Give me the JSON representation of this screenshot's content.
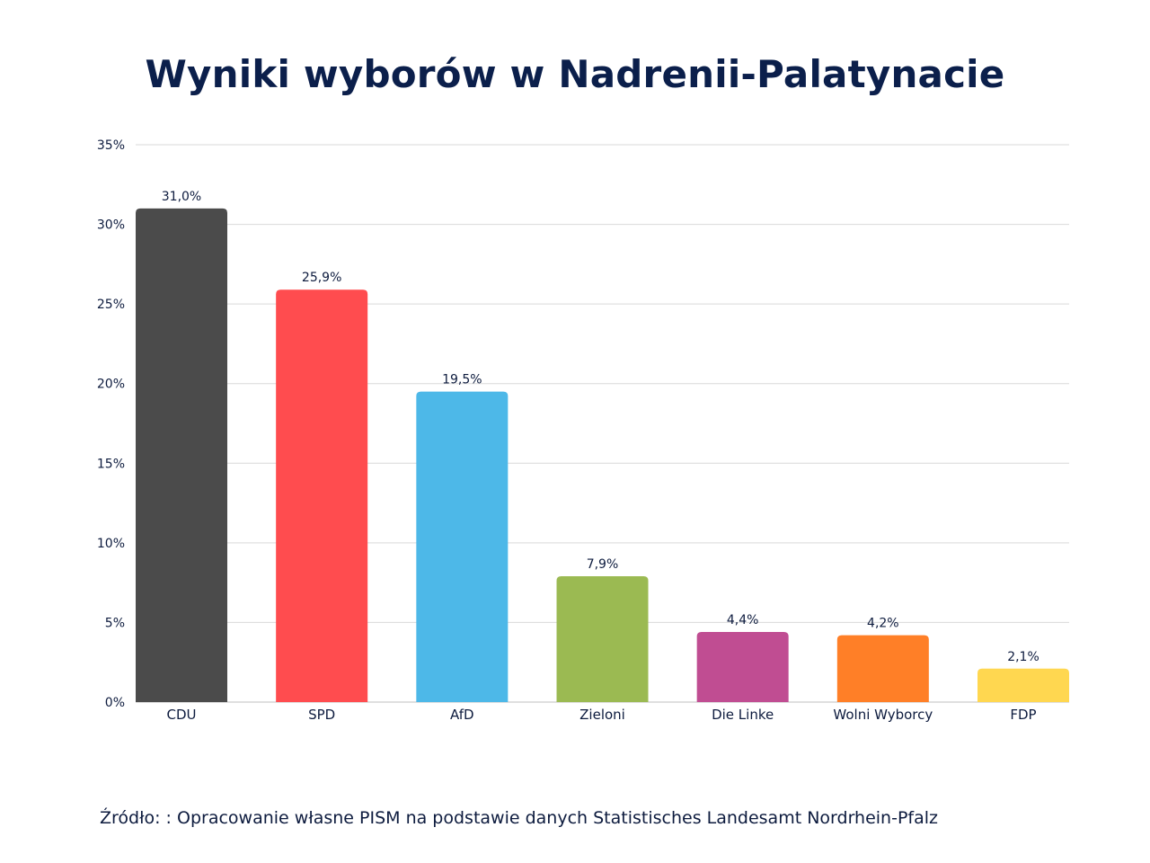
{
  "title": "Wyniki wyborów w Nadrenii-Palatynacie",
  "source": "Źródło: : Opracowanie własne PISM na podstawie danych Statistisches Landesamt Nordrhein-Pfalz",
  "chart_data": {
    "type": "bar",
    "title": "Wyniki wyborów w Nadrenii-Palatynacie",
    "xlabel": "",
    "ylabel": "",
    "categories": [
      "CDU",
      "SPD",
      "AfD",
      "Zieloni",
      "Die Linke",
      "Wolni Wyborcy",
      "FDP"
    ],
    "values": [
      31.0,
      25.9,
      19.5,
      7.9,
      4.4,
      4.2,
      2.1
    ],
    "value_labels": [
      "31,0%",
      "25,9%",
      "19,5%",
      "7,9%",
      "4,4%",
      "4,2%",
      "2,1%"
    ],
    "colors": [
      "#4b4b4b",
      "#ff4c4f",
      "#4db8e8",
      "#9bba52",
      "#c04d92",
      "#ff7f27",
      "#ffd750"
    ],
    "ylim": [
      0,
      35
    ],
    "yticks": [
      0,
      5,
      10,
      15,
      20,
      25,
      30,
      35
    ],
    "ytick_labels": [
      "0%",
      "5%",
      "10%",
      "15%",
      "20%",
      "25%",
      "30%",
      "35%"
    ],
    "grid": true,
    "grid_color": "#d9d9d9"
  }
}
